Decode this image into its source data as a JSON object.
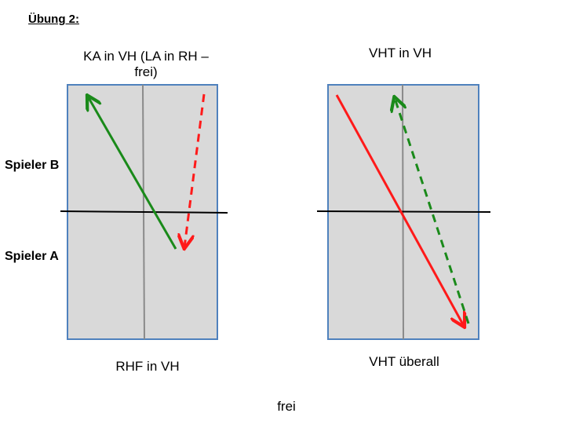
{
  "title": "Übung 2:",
  "players": {
    "top": "Spieler B",
    "bottom": "Spieler A"
  },
  "left_table": {
    "top_label": "KA in VH (LA in RH – frei)",
    "bottom_label": "RHF in VH"
  },
  "right_table": {
    "top_label": "VHT in VH",
    "bottom_label": "VHT überall"
  },
  "footer": "frei",
  "colors": {
    "table_fill": "#d9d9d9",
    "table_border": "#4f81bd",
    "green_arrow": "#1a8a1a",
    "red_arrow": "#ff1a1a"
  }
}
